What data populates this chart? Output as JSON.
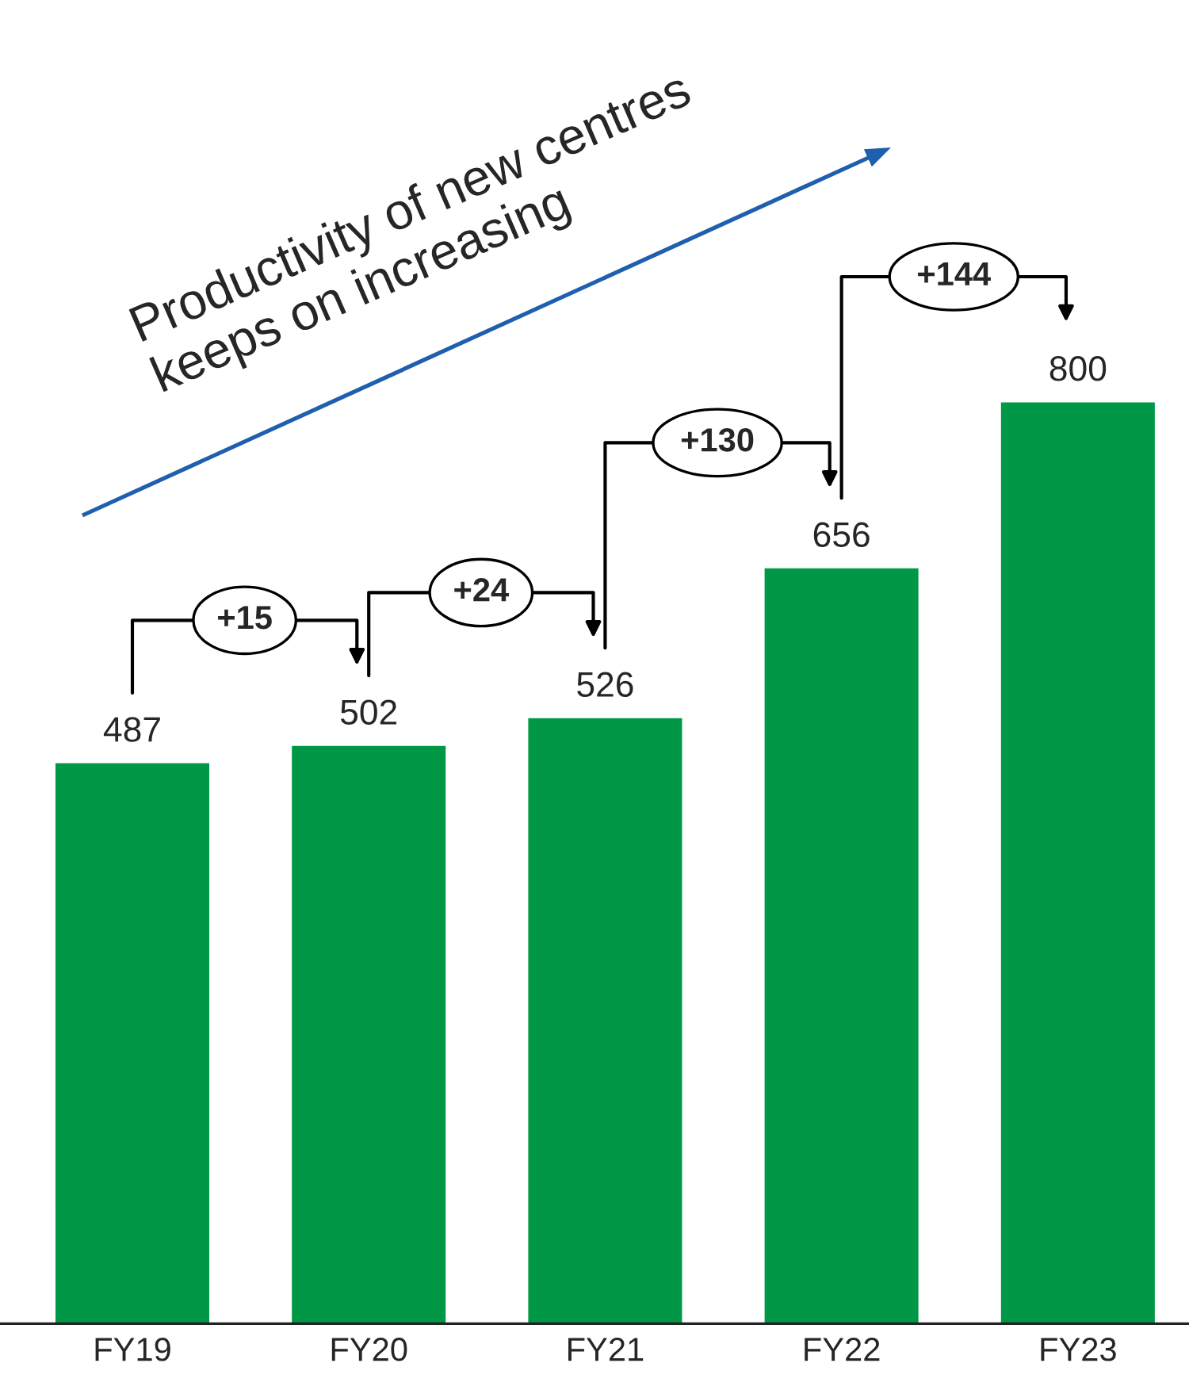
{
  "chart_data": {
    "type": "bar",
    "categories": [
      "FY19",
      "FY20",
      "FY21",
      "FY22",
      "FY23"
    ],
    "values": [
      487,
      502,
      526,
      656,
      800
    ],
    "color": "#009846",
    "data_labels": true,
    "tick_labels": "x",
    "grid": false,
    "legend": false,
    "annotations": [
      "Productivity of new centres\nkeeps on increasing",
      "+15",
      "+24",
      "+130",
      "+144"
    ]
  }
}
